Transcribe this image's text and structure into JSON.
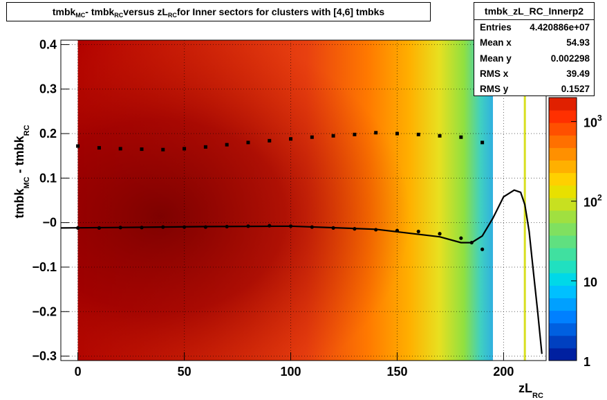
{
  "title": {
    "parts": [
      "tmbk",
      "MC",
      " - tmbk",
      "RC",
      " versus zL",
      "RC",
      " for Inner sectors for clusters with [4,6] tmbks"
    ]
  },
  "stats_box": {
    "name": "tmbk_zL_RC_Innerp2",
    "rows": [
      {
        "label": "Entries",
        "value": "4.420886e+07"
      },
      {
        "label": "Mean x",
        "value": "54.93"
      },
      {
        "label": "Mean y",
        "value": "0.002298"
      },
      {
        "label": "RMS x",
        "value": "39.49"
      },
      {
        "label": "RMS y",
        "value": "0.1527"
      }
    ]
  },
  "colors": {
    "hist_core": "#8b0000",
    "hist_mid": "#ff4500",
    "marker": "#000000",
    "fit_curve": "#000000"
  },
  "chart_data": {
    "type": "heatmap",
    "title": "tmbk_MC - tmbk_RC versus zL_RC for Inner sectors for clusters with [4,6] tmbks",
    "xlabel": "zL_RC",
    "ylabel": "tmbk_MC - tmbk_RC",
    "xlim": [
      -8,
      220
    ],
    "ylim": [
      -0.31,
      0.41
    ],
    "x_ticks": [
      0,
      50,
      100,
      150,
      200
    ],
    "y_ticks": [
      -0.3,
      -0.2,
      -0.1,
      0,
      0.1,
      0.2,
      0.3,
      0.4
    ],
    "x_tick_labels": [
      "0",
      "50",
      "100",
      "150",
      "200"
    ],
    "y_tick_labels": [
      "−0.3",
      "−0.2",
      "−0.1",
      "−0",
      "0.1",
      "0.2",
      "0.3",
      "0.4"
    ],
    "grid": true,
    "color_scale": {
      "type": "log",
      "ticks": [
        {
          "value": 1,
          "base": "1",
          "exp": ""
        },
        {
          "value": 10,
          "base": "10",
          "exp": ""
        },
        {
          "value": 100,
          "base": "10",
          "exp": "2"
        },
        {
          "value": 1000,
          "base": "10",
          "exp": "3"
        }
      ]
    },
    "mean_series": {
      "x": [
        0,
        10,
        20,
        30,
        40,
        50,
        60,
        70,
        80,
        90,
        100,
        110,
        120,
        130,
        140,
        150,
        160,
        170,
        180,
        185,
        190
      ],
      "y": [
        -0.012,
        -0.012,
        -0.011,
        -0.011,
        -0.01,
        -0.01,
        -0.01,
        -0.009,
        -0.008,
        -0.007,
        -0.008,
        -0.01,
        -0.012,
        -0.014,
        -0.016,
        -0.018,
        -0.02,
        -0.025,
        -0.035,
        -0.045,
        -0.06
      ]
    },
    "rms_series": {
      "x": [
        0,
        10,
        20,
        30,
        40,
        50,
        60,
        70,
        80,
        90,
        100,
        110,
        120,
        130,
        140,
        150,
        160,
        170,
        180,
        190
      ],
      "y": [
        0.172,
        0.168,
        0.166,
        0.165,
        0.164,
        0.166,
        0.17,
        0.175,
        0.18,
        0.184,
        0.188,
        0.192,
        0.195,
        0.198,
        0.202,
        0.2,
        0.198,
        0.195,
        0.192,
        0.18
      ]
    },
    "fit_curve": {
      "x": [
        -8,
        20,
        60,
        100,
        140,
        170,
        180,
        185,
        190,
        195,
        200,
        205,
        208,
        210,
        212,
        214,
        216,
        218
      ],
      "y": [
        -0.012,
        -0.011,
        -0.009,
        -0.008,
        -0.015,
        -0.032,
        -0.045,
        -0.045,
        -0.03,
        0.01,
        0.058,
        0.073,
        0.068,
        0.04,
        -0.02,
        -0.11,
        -0.2,
        -0.295
      ]
    }
  }
}
